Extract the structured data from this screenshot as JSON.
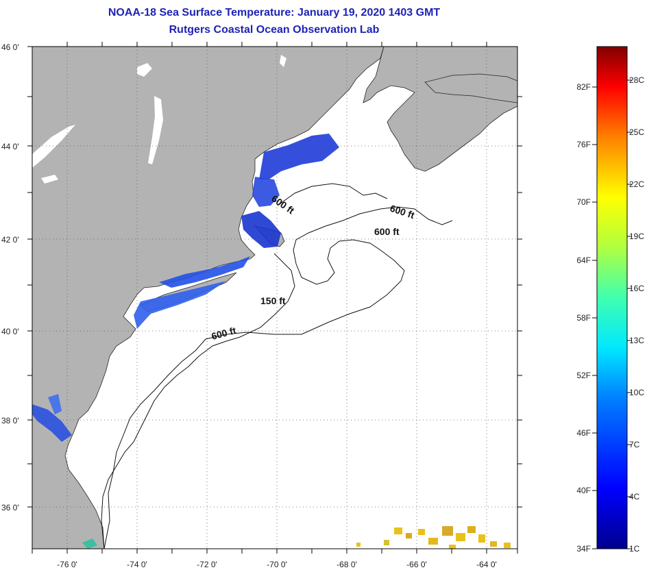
{
  "header": {
    "title": "NOAA-18 Sea Surface Temperature:  January 19, 2020 1403 GMT",
    "subtitle": "Rutgers Coastal Ocean Observation Lab"
  },
  "map": {
    "lat_labels": [
      "46 0'",
      "44 0'",
      "42 0'",
      "40 0'",
      "38 0'",
      "36 0'"
    ],
    "lon_labels": [
      "-76 0'",
      "-74 0'",
      "-72 0'",
      "-70 0'",
      "-68 0'",
      "-66 0'",
      "-64 0'"
    ],
    "contour_labels": {
      "c600_gom": "600 ft",
      "c600_east": "600 ft",
      "c600_georges": "600 ft",
      "c150": "150 ft",
      "c600_shelf": "600 ft"
    },
    "colors": {
      "land": "#b3b3b3",
      "water": "#ffffff",
      "cold_sst": "#1f3cd8",
      "warm_sst": "#e8c21a",
      "title": "#1f23b4"
    }
  },
  "colorbar": {
    "f_labels": [
      "82F",
      "76F",
      "70F",
      "64F",
      "58F",
      "52F",
      "46F",
      "40F",
      "34F"
    ],
    "c_labels": [
      "28C",
      "25C",
      "22C",
      "19C",
      "16C",
      "13C",
      "10C",
      "7C",
      "4C",
      "1C"
    ]
  }
}
